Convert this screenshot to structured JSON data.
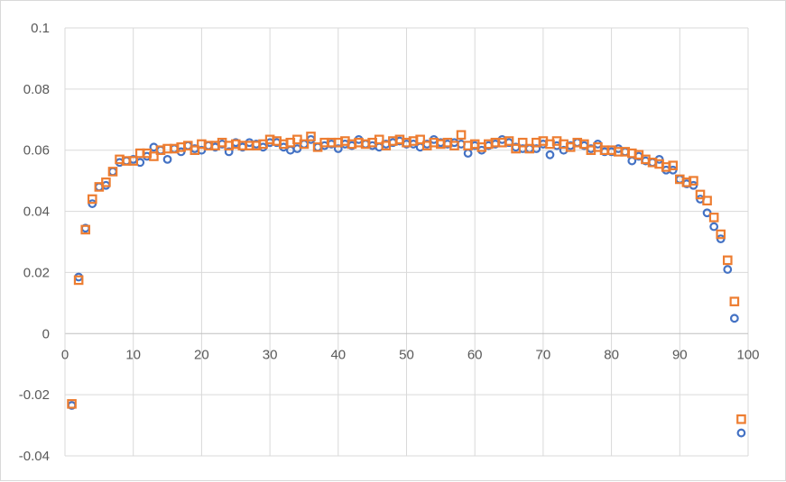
{
  "chart_data": {
    "type": "scatter",
    "title": "",
    "xlabel": "",
    "ylabel": "",
    "xlim": [
      0,
      100
    ],
    "ylim": [
      -0.04,
      0.1
    ],
    "x_ticks": [
      0,
      10,
      20,
      30,
      40,
      50,
      60,
      70,
      80,
      90,
      100
    ],
    "x_tick_labels": [
      "0",
      "10",
      "20",
      "30",
      "40",
      "50",
      "60",
      "70",
      "80",
      "90",
      "100"
    ],
    "y_ticks": [
      -0.04,
      -0.02,
      0,
      0.02,
      0.04,
      0.06,
      0.08,
      0.1
    ],
    "y_tick_labels": [
      "-0.04",
      "-0.02",
      "0",
      "0.02",
      "0.04",
      "0.06",
      "0.08",
      "0.1"
    ],
    "grid": true,
    "legend": "none",
    "series": [
      {
        "marker": "circle",
        "color": "#4472C4",
        "x": [
          1,
          2,
          3,
          4,
          5,
          6,
          7,
          8,
          9,
          10,
          11,
          12,
          13,
          14,
          15,
          16,
          17,
          18,
          19,
          20,
          21,
          22,
          23,
          24,
          25,
          26,
          27,
          28,
          29,
          30,
          31,
          32,
          33,
          34,
          35,
          36,
          37,
          38,
          39,
          40,
          41,
          42,
          43,
          44,
          45,
          46,
          47,
          48,
          49,
          50,
          51,
          52,
          53,
          54,
          55,
          56,
          57,
          58,
          59,
          60,
          61,
          62,
          63,
          64,
          65,
          66,
          67,
          68,
          69,
          70,
          71,
          72,
          73,
          74,
          75,
          76,
          77,
          78,
          79,
          80,
          81,
          82,
          83,
          84,
          85,
          86,
          87,
          88,
          89,
          90,
          91,
          92,
          93,
          94,
          95,
          96,
          97,
          98,
          99
        ],
        "y": [
          -0.0235,
          0.0185,
          0.0345,
          0.0425,
          0.048,
          0.0485,
          0.053,
          0.056,
          0.0565,
          0.057,
          0.056,
          0.058,
          0.061,
          0.06,
          0.057,
          0.0605,
          0.0595,
          0.0615,
          0.0605,
          0.06,
          0.0615,
          0.061,
          0.062,
          0.0595,
          0.0625,
          0.061,
          0.0625,
          0.062,
          0.061,
          0.0625,
          0.0625,
          0.061,
          0.06,
          0.0605,
          0.062,
          0.0635,
          0.061,
          0.0615,
          0.062,
          0.0605,
          0.062,
          0.0615,
          0.0635,
          0.062,
          0.0615,
          0.061,
          0.062,
          0.0625,
          0.063,
          0.062,
          0.062,
          0.061,
          0.062,
          0.0635,
          0.0625,
          0.062,
          0.0625,
          0.062,
          0.059,
          0.0615,
          0.06,
          0.0615,
          0.062,
          0.0635,
          0.0625,
          0.061,
          0.0605,
          0.0605,
          0.0605,
          0.062,
          0.0585,
          0.0615,
          0.06,
          0.0615,
          0.0625,
          0.0615,
          0.0605,
          0.062,
          0.0595,
          0.0595,
          0.0605,
          0.0595,
          0.0565,
          0.058,
          0.0565,
          0.056,
          0.057,
          0.0535,
          0.0535,
          0.0505,
          0.049,
          0.0485,
          0.044,
          0.0395,
          0.035,
          0.031,
          0.021,
          0.005,
          -0.0325
        ]
      },
      {
        "marker": "square",
        "color": "#ED7D31",
        "x": [
          1,
          2,
          3,
          4,
          5,
          6,
          7,
          8,
          9,
          10,
          11,
          12,
          13,
          14,
          15,
          16,
          17,
          18,
          19,
          20,
          21,
          22,
          23,
          24,
          25,
          26,
          27,
          28,
          29,
          30,
          31,
          32,
          33,
          34,
          35,
          36,
          37,
          38,
          39,
          40,
          41,
          42,
          43,
          44,
          45,
          46,
          47,
          48,
          49,
          50,
          51,
          52,
          53,
          54,
          55,
          56,
          57,
          58,
          59,
          60,
          61,
          62,
          63,
          64,
          65,
          66,
          67,
          68,
          69,
          70,
          71,
          72,
          73,
          74,
          75,
          76,
          77,
          78,
          79,
          80,
          81,
          82,
          83,
          84,
          85,
          86,
          87,
          88,
          89,
          90,
          91,
          92,
          93,
          94,
          95,
          96,
          97,
          98,
          99
        ],
        "y": [
          -0.023,
          0.0175,
          0.034,
          0.044,
          0.048,
          0.0495,
          0.053,
          0.057,
          0.0565,
          0.0565,
          0.059,
          0.059,
          0.058,
          0.06,
          0.0605,
          0.0605,
          0.061,
          0.0615,
          0.06,
          0.062,
          0.0615,
          0.0615,
          0.0625,
          0.0615,
          0.062,
          0.0615,
          0.0615,
          0.0615,
          0.062,
          0.0635,
          0.063,
          0.062,
          0.0625,
          0.0635,
          0.062,
          0.0645,
          0.061,
          0.0625,
          0.0625,
          0.0625,
          0.063,
          0.062,
          0.0625,
          0.062,
          0.0625,
          0.0635,
          0.0615,
          0.063,
          0.0635,
          0.0625,
          0.063,
          0.0635,
          0.0615,
          0.0625,
          0.062,
          0.0625,
          0.0615,
          0.065,
          0.0615,
          0.062,
          0.061,
          0.062,
          0.0625,
          0.0625,
          0.063,
          0.0605,
          0.0625,
          0.0605,
          0.0625,
          0.063,
          0.062,
          0.063,
          0.062,
          0.061,
          0.0625,
          0.062,
          0.06,
          0.061,
          0.06,
          0.06,
          0.0595,
          0.0595,
          0.059,
          0.0585,
          0.057,
          0.056,
          0.0555,
          0.0545,
          0.055,
          0.0505,
          0.0495,
          0.05,
          0.0455,
          0.0435,
          0.038,
          0.0325,
          0.024,
          0.0105,
          -0.028
        ]
      }
    ]
  }
}
